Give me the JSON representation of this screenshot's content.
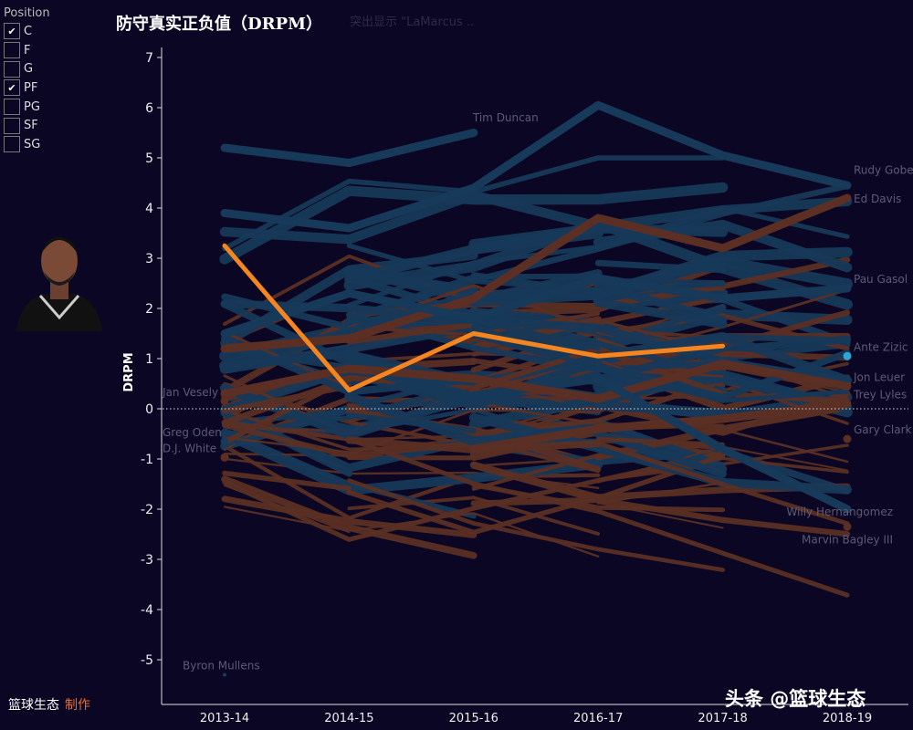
{
  "filter": {
    "title": "Position",
    "options": [
      {
        "label": "C",
        "checked": true
      },
      {
        "label": "F",
        "checked": false
      },
      {
        "label": "G",
        "checked": false
      },
      {
        "label": "PF",
        "checked": true
      },
      {
        "label": "PG",
        "checked": false
      },
      {
        "label": "SF",
        "checked": false
      },
      {
        "label": "SG",
        "checked": false
      }
    ]
  },
  "title": "防守真实正负值（DRPM）",
  "subtitle": "突出显示 \"LaMarcus ..",
  "footer": {
    "brand": "篮球生态",
    "made": "制作"
  },
  "watermark": "头条 @篮球生态",
  "colors": {
    "background": "#0b0623",
    "center": "#17395a",
    "power_forward": "#5b2f24",
    "highlight": "#f5861f",
    "single_point": "#2aa9d8"
  },
  "chart_data": {
    "type": "line",
    "ylabel": "DRPM",
    "ylim": [
      -5.5,
      7.3
    ],
    "yticks": [
      7,
      6,
      5,
      4,
      3,
      2,
      1,
      0,
      -1,
      -2,
      -3,
      -4,
      -5
    ],
    "categories": [
      "2013-14",
      "2014-15",
      "2015-16",
      "2016-17",
      "2017-18",
      "2018-19"
    ],
    "reference_line": 0,
    "highlight": {
      "values": [
        3.25,
        0.37,
        1.5,
        1.05,
        1.25,
        null
      ]
    },
    "series": [
      {
        "name": "Tim Duncan",
        "position": "C",
        "values": [
          5.2,
          4.9,
          5.5,
          null,
          null,
          null
        ],
        "label_at": 2
      },
      {
        "name": "Rudy Gobert",
        "position": "C",
        "values": [
          3.9,
          3.6,
          4.4,
          6.05,
          5.05,
          4.45
        ],
        "label_at": 5
      },
      {
        "name": "Ed Davis",
        "position": "PF",
        "values": [
          1.2,
          1.4,
          2.2,
          3.8,
          3.2,
          4.2
        ],
        "label_at": 5
      },
      {
        "name": "Pau Gasol",
        "position": "C",
        "values": [
          1.5,
          2.3,
          1.8,
          2.6,
          2.2,
          2.4
        ],
        "label_at": 5
      },
      {
        "name": "Ante Zizic",
        "position": "C",
        "values": [
          null,
          null,
          null,
          null,
          null,
          1.05
        ],
        "label_at": 5
      },
      {
        "name": "Jon Leuer",
        "position": "PF",
        "values": [
          0.3,
          0.8,
          0.6,
          0.2,
          0.9,
          0.45
        ],
        "label_at": 5
      },
      {
        "name": "Trey Lyles",
        "position": "PF",
        "values": [
          null,
          null,
          -0.8,
          -0.4,
          -0.2,
          0.1
        ],
        "label_at": 5
      },
      {
        "name": "Gary Clark",
        "position": "PF",
        "values": [
          null,
          null,
          null,
          null,
          null,
          -0.6
        ],
        "label_at": 5
      },
      {
        "name": "Willy Hernangomez",
        "position": "C",
        "values": [
          null,
          null,
          null,
          0.6,
          -0.8,
          -2.0
        ],
        "label_at": 5
      },
      {
        "name": "Marvin Bagley III",
        "position": "PF",
        "values": [
          null,
          null,
          null,
          null,
          null,
          -2.35
        ],
        "label_at": 5
      },
      {
        "name": "Jan Vesely",
        "position": "PF",
        "values": [
          0.15,
          null,
          null,
          null,
          null,
          null
        ],
        "label_at": 0
      },
      {
        "name": "Greg Oden",
        "position": "C",
        "values": [
          -0.65,
          null,
          null,
          null,
          null,
          null
        ],
        "label_at": 0
      },
      {
        "name": "D.J. White",
        "position": "PF",
        "values": [
          -0.97,
          null,
          null,
          null,
          null,
          null
        ],
        "label_at": 0
      },
      {
        "name": "Byron Mullens",
        "position": "C",
        "values": [
          -5.3,
          null,
          null,
          null,
          null,
          null
        ],
        "label_at": 0
      }
    ]
  }
}
